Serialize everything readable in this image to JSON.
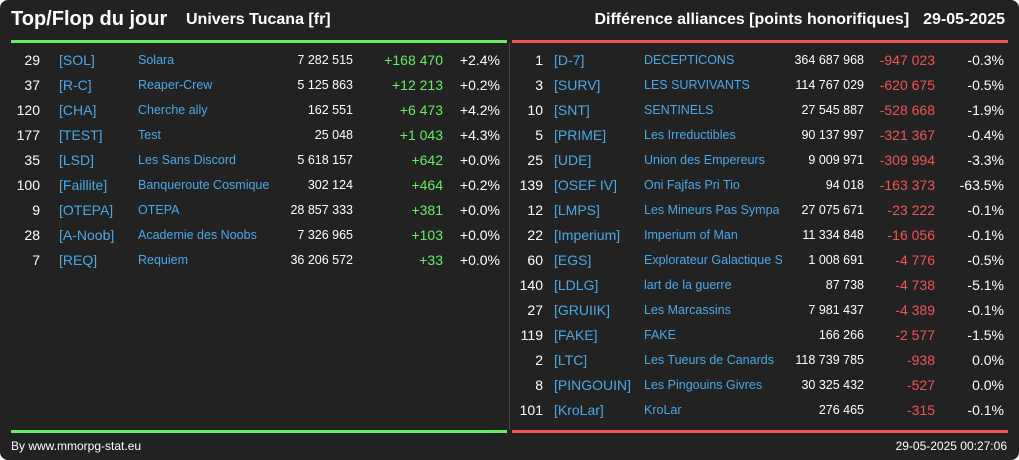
{
  "header": {
    "title": "Top/Flop du jour",
    "subtitle": "Univers Tucana [fr]",
    "right_title": "Différence alliances [points honorifiques]",
    "date": "29-05-2025"
  },
  "colors": {
    "top": "#66ee66",
    "flop": "#ee5555",
    "tag": "#4aa8e8",
    "background": "#222222"
  },
  "top": [
    {
      "rank": "29",
      "tag": "[SOL]",
      "name": "Solara",
      "points": "7 282 515",
      "delta": "+168 470",
      "pct": "+2.4%"
    },
    {
      "rank": "37",
      "tag": "[R-C]",
      "name": "Reaper-Crew",
      "points": "5 125 863",
      "delta": "+12 213",
      "pct": "+0.2%"
    },
    {
      "rank": "120",
      "tag": "[CHA]",
      "name": "Cherche ally",
      "points": "162 551",
      "delta": "+6 473",
      "pct": "+4.2%"
    },
    {
      "rank": "177",
      "tag": "[TEST]",
      "name": "Test",
      "points": "25 048",
      "delta": "+1 043",
      "pct": "+4.3%"
    },
    {
      "rank": "35",
      "tag": "[LSD]",
      "name": "Les Sans Discord",
      "points": "5 618 157",
      "delta": "+642",
      "pct": "+0.0%"
    },
    {
      "rank": "100",
      "tag": "[Faillite]",
      "name": "Banqueroute Cosmique",
      "points": "302 124",
      "delta": "+464",
      "pct": "+0.2%"
    },
    {
      "rank": "9",
      "tag": "[OTEPA]",
      "name": "OTEPA",
      "points": "28 857 333",
      "delta": "+381",
      "pct": "+0.0%"
    },
    {
      "rank": "28",
      "tag": "[A-Noob]",
      "name": "Academie des Noobs",
      "points": "7 326 965",
      "delta": "+103",
      "pct": "+0.0%"
    },
    {
      "rank": "7",
      "tag": "[REQ]",
      "name": "Requiem",
      "points": "36 206 572",
      "delta": "+33",
      "pct": "+0.0%"
    }
  ],
  "flop": [
    {
      "rank": "1",
      "tag": "[D-7]",
      "name": "DECEPTICONS",
      "points": "364 687 968",
      "delta": "-947 023",
      "pct": "-0.3%"
    },
    {
      "rank": "3",
      "tag": "[SURV]",
      "name": "LES SURVIVANTS",
      "points": "114 767 029",
      "delta": "-620 675",
      "pct": "-0.5%"
    },
    {
      "rank": "10",
      "tag": "[SNT]",
      "name": "SENTINELS",
      "points": "27 545 887",
      "delta": "-528 668",
      "pct": "-1.9%"
    },
    {
      "rank": "5",
      "tag": "[PRIME]",
      "name": "Les Irreductibles",
      "points": "90 137 997",
      "delta": "-321 367",
      "pct": "-0.4%"
    },
    {
      "rank": "25",
      "tag": "[UDE]",
      "name": "Union des Empereurs",
      "points": "9 009 971",
      "delta": "-309 994",
      "pct": "-3.3%"
    },
    {
      "rank": "139",
      "tag": "[OSEF IV]",
      "name": "Oni Fajfas Pri Tio",
      "points": "94 018",
      "delta": "-163 373",
      "pct": "-63.5%"
    },
    {
      "rank": "12",
      "tag": "[LMPS]",
      "name": "Les Mineurs Pas Sympa",
      "points": "27 075 671",
      "delta": "-23 222",
      "pct": "-0.1%"
    },
    {
      "rank": "22",
      "tag": "[Imperium]",
      "name": "Imperium of Man",
      "points": "11 334 848",
      "delta": "-16 056",
      "pct": "-0.1%"
    },
    {
      "rank": "60",
      "tag": "[EGS]",
      "name": "Explorateur Galactique S",
      "points": "1 008 691",
      "delta": "-4 776",
      "pct": "-0.5%"
    },
    {
      "rank": "140",
      "tag": "[LDLG]",
      "name": "lart de la guerre",
      "points": "87 738",
      "delta": "-4 738",
      "pct": "-5.1%"
    },
    {
      "rank": "27",
      "tag": "[GRUIIK]",
      "name": "Les Marcassins",
      "points": "7 981 437",
      "delta": "-4 389",
      "pct": "-0.1%"
    },
    {
      "rank": "119",
      "tag": "[FAKE]",
      "name": "FAKE",
      "points": "166 266",
      "delta": "-2 577",
      "pct": "-1.5%"
    },
    {
      "rank": "2",
      "tag": "[LTC]",
      "name": "Les Tueurs de Canards",
      "points": "118 739 785",
      "delta": "-938",
      "pct": "0.0%"
    },
    {
      "rank": "8",
      "tag": "[PINGOUIN]",
      "name": "Les Pingouins Givres",
      "points": "30 325 432",
      "delta": "-527",
      "pct": "0.0%"
    },
    {
      "rank": "101",
      "tag": "[KroLar]",
      "name": "KroLar",
      "points": "276 465",
      "delta": "-315",
      "pct": "-0.1%"
    }
  ],
  "footer": {
    "source": "By www.mmorpg-stat.eu",
    "timestamp": "29-05-2025 00:27:06"
  }
}
